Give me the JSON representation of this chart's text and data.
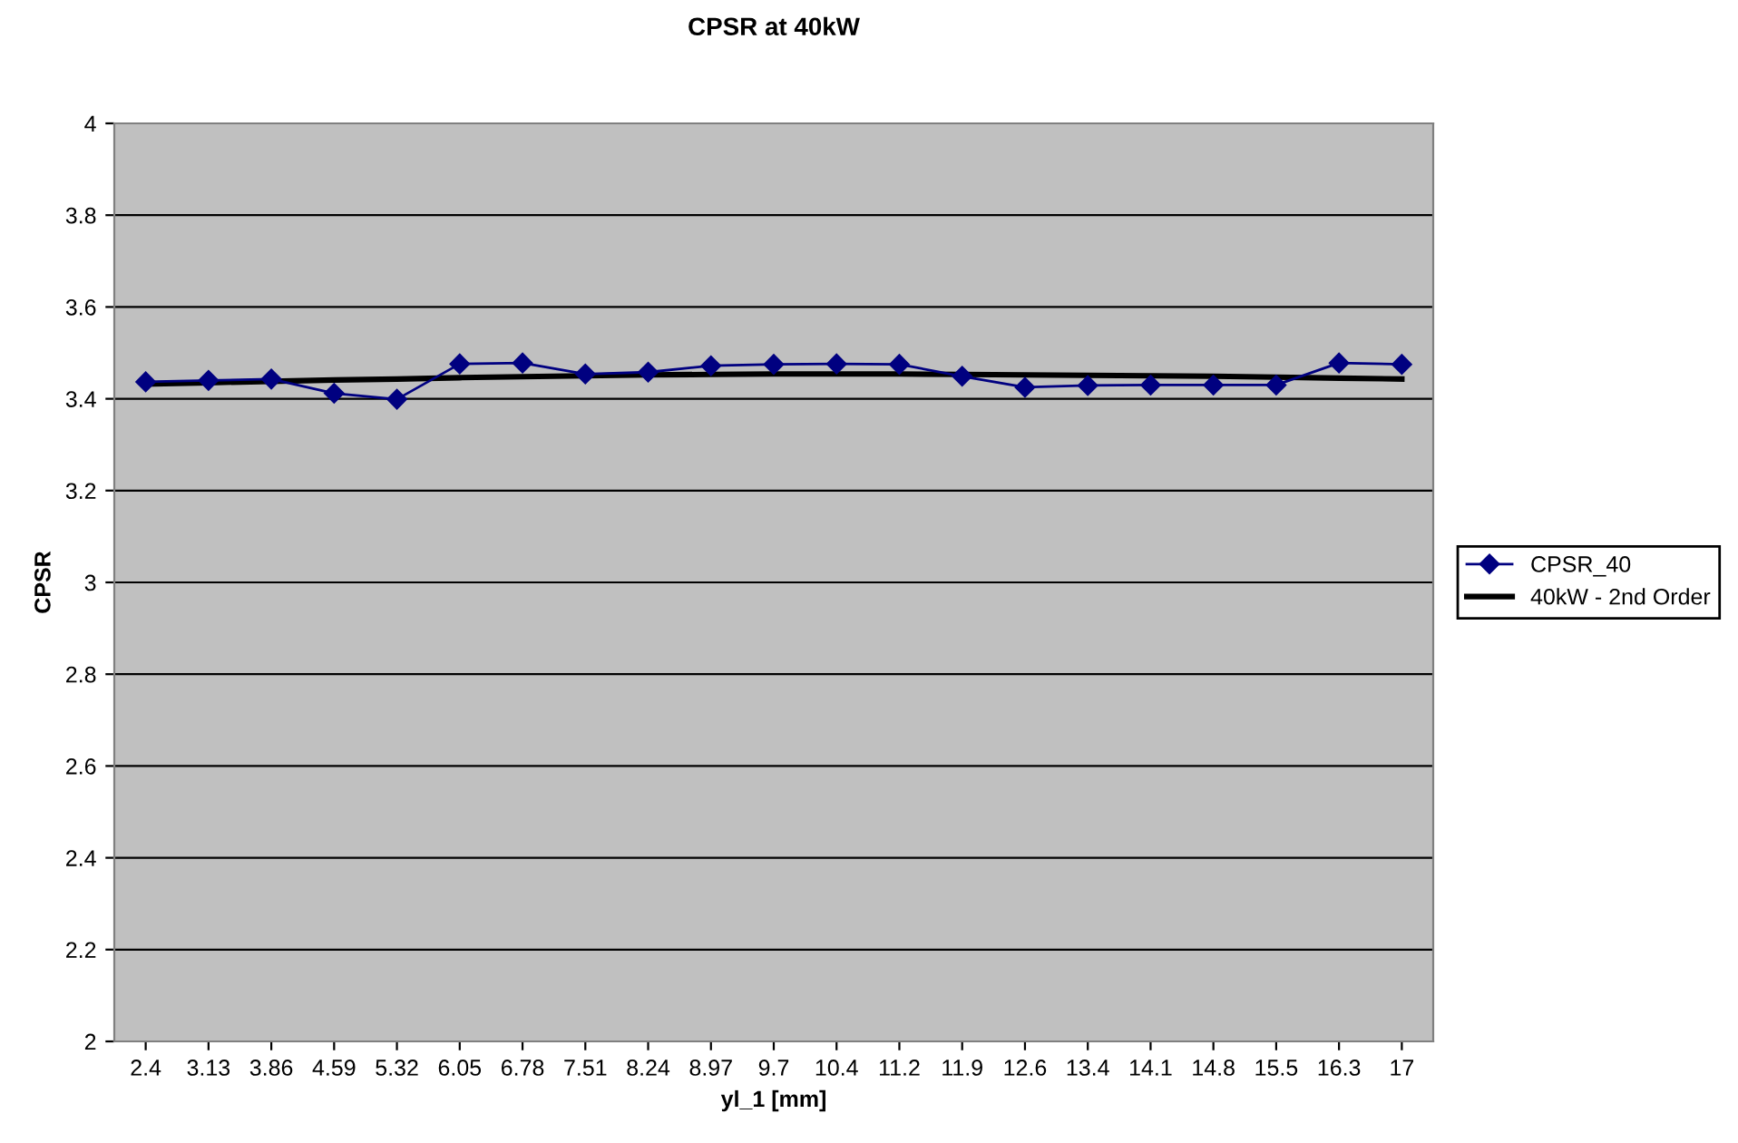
{
  "chart_data": {
    "type": "line",
    "title": "CPSR at 40kW",
    "xlabel": "yl_1 [mm]",
    "ylabel": "CPSR",
    "categories": [
      "2.4",
      "3.13",
      "3.86",
      "4.59",
      "5.32",
      "6.05",
      "6.78",
      "7.51",
      "8.24",
      "8.97",
      "9.7",
      "10.4",
      "11.2",
      "11.9",
      "12.6",
      "13.4",
      "14.1",
      "14.8",
      "15.5",
      "16.3",
      "17"
    ],
    "series": [
      {
        "name": "CPSR_40",
        "color": "#000080",
        "marker": "diamond",
        "line_style": "solid",
        "values": [
          3.437,
          3.44,
          3.443,
          3.412,
          3.399,
          3.476,
          3.478,
          3.454,
          3.458,
          3.472,
          3.475,
          3.476,
          3.475,
          3.449,
          3.425,
          3.429,
          3.43,
          3.43,
          3.43,
          3.478,
          3.475
        ]
      },
      {
        "name": "40kW - 2nd Order",
        "color": "#000000",
        "marker": "none",
        "line_style": "solid",
        "values": [
          3.432,
          3.435,
          3.438,
          3.441,
          3.443,
          3.446,
          3.448,
          3.45,
          3.452,
          3.453,
          3.454,
          3.454,
          3.454,
          3.453,
          3.452,
          3.451,
          3.45,
          3.449,
          3.447,
          3.445,
          3.443
        ]
      }
    ],
    "ylim": [
      2,
      4
    ],
    "yticks": [
      2,
      2.2,
      2.4,
      2.6,
      2.8,
      3,
      3.2,
      3.4,
      3.6,
      3.8,
      4
    ],
    "grid": "y",
    "legend": "right"
  }
}
